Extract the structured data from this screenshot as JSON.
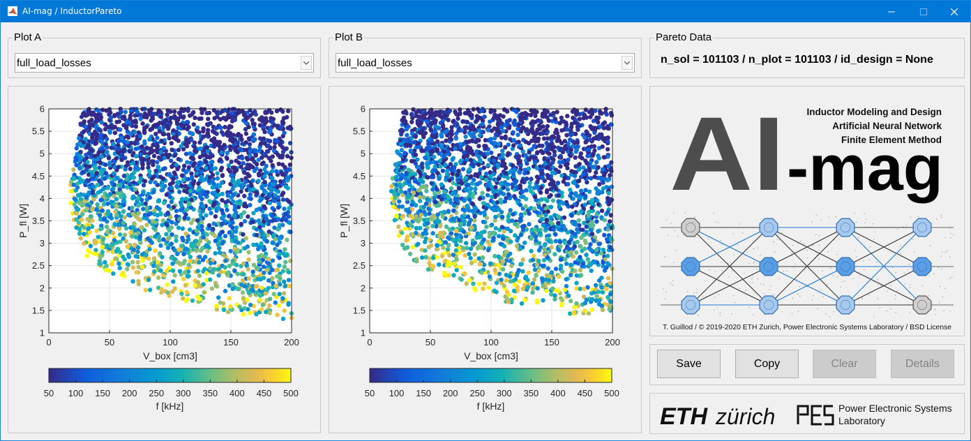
{
  "window": {
    "title": "AI-mag / InductorPareto",
    "controls": [
      "minimize",
      "maximize",
      "close"
    ]
  },
  "plot_a": {
    "label": "Plot A",
    "selected": "full_load_losses",
    "chart": {
      "xlabel": "V_box [cm3]",
      "ylabel": "P_fl [W]",
      "xticks": [
        "0",
        "50",
        "100",
        "150",
        "200"
      ],
      "yticks": [
        "1",
        "1.5",
        "2",
        "2.5",
        "3",
        "3.5",
        "4",
        "4.5",
        "5",
        "5.5",
        "6"
      ],
      "colorbar_label": "f [kHz]",
      "colorbar_ticks": [
        "50",
        "100",
        "150",
        "200",
        "250",
        "300",
        "350",
        "400",
        "450",
        "500"
      ]
    }
  },
  "plot_b": {
    "label": "Plot B",
    "selected": "full_load_losses",
    "chart": {
      "xlabel": "V_box [cm3]",
      "ylabel": "P_fl [W]",
      "xticks": [
        "0",
        "50",
        "100",
        "150",
        "200"
      ],
      "yticks": [
        "1",
        "1.5",
        "2",
        "2.5",
        "3",
        "3.5",
        "4",
        "4.5",
        "5",
        "5.5",
        "6"
      ],
      "colorbar_label": "f [kHz]",
      "colorbar_ticks": [
        "50",
        "100",
        "150",
        "200",
        "250",
        "300",
        "350",
        "400",
        "450",
        "500"
      ]
    }
  },
  "chart_data": [
    {
      "type": "scatter",
      "title": "",
      "xlabel": "V_box [cm3]",
      "ylabel": "P_fl [W]",
      "xlim": [
        0,
        200
      ],
      "ylim": [
        1,
        6
      ],
      "grid": true,
      "color_variable": "f [kHz]",
      "color_range": [
        50,
        500
      ],
      "colormap": "parula",
      "front_boundary": [
        {
          "x": 17,
          "y": 4.15
        },
        {
          "x": 20,
          "y": 3.5
        },
        {
          "x": 25,
          "y": 3.0
        },
        {
          "x": 30,
          "y": 2.75
        },
        {
          "x": 40,
          "y": 2.5
        },
        {
          "x": 50,
          "y": 2.3
        },
        {
          "x": 75,
          "y": 2.0
        },
        {
          "x": 100,
          "y": 1.75
        },
        {
          "x": 125,
          "y": 1.6
        },
        {
          "x": 150,
          "y": 1.45
        },
        {
          "x": 175,
          "y": 1.35
        },
        {
          "x": 200,
          "y": 1.28
        }
      ]
    },
    {
      "type": "scatter",
      "title": "",
      "xlabel": "V_box [cm3]",
      "ylabel": "P_fl [W]",
      "xlim": [
        0,
        200
      ],
      "ylim": [
        1,
        6
      ],
      "grid": true,
      "color_variable": "f [kHz]",
      "color_range": [
        50,
        500
      ],
      "colormap": "parula",
      "front_boundary": [
        {
          "x": 17,
          "y": 4.15
        },
        {
          "x": 20,
          "y": 3.5
        },
        {
          "x": 25,
          "y": 3.0
        },
        {
          "x": 30,
          "y": 2.75
        },
        {
          "x": 40,
          "y": 2.5
        },
        {
          "x": 50,
          "y": 2.3
        },
        {
          "x": 75,
          "y": 2.0
        },
        {
          "x": 100,
          "y": 1.75
        },
        {
          "x": 125,
          "y": 1.6
        },
        {
          "x": 150,
          "y": 1.45
        },
        {
          "x": 175,
          "y": 1.35
        },
        {
          "x": 200,
          "y": 1.28
        }
      ]
    }
  ],
  "pareto_data": {
    "label": "Pareto Data",
    "text": "n_sol = 101103 / n_plot = 101103 / id_design = None"
  },
  "logo": {
    "big_ai": "AI",
    "big_mag": "-mag",
    "lines": [
      "Inductor Modeling and Design",
      "Artificial Neural Network",
      "Finite Element Method"
    ],
    "footer": "T. Guillod / © 2019-2020 ETH Zurich, Power Electronic Systems Laboratory / BSD License"
  },
  "buttons": {
    "save": "Save",
    "copy": "Copy",
    "clear": "Clear",
    "details": "Details"
  },
  "footer": {
    "eth": "ETH",
    "zurich": "zürich",
    "pes_mark": "PES",
    "pes_line1": "Power Electronic Systems",
    "pes_line2": "Laboratory"
  },
  "colors": {
    "titlebar": "#0078d7",
    "panel_bg": "#f0f0f0",
    "logo_grey": "#4d4d4d",
    "network_blue": "#1f77d6"
  }
}
